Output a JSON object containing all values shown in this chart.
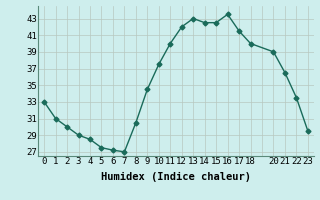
{
  "x": [
    0,
    1,
    2,
    3,
    4,
    5,
    6,
    7,
    8,
    9,
    10,
    11,
    12,
    13,
    14,
    15,
    16,
    17,
    18,
    20,
    21,
    22,
    23
  ],
  "y": [
    33,
    31,
    30,
    29,
    28.5,
    27.5,
    27.2,
    27,
    30.5,
    34.5,
    37.5,
    40,
    42,
    43,
    42.5,
    42.5,
    43.5,
    41.5,
    40,
    39,
    36.5,
    33.5,
    29.5
  ],
  "line_color": "#1a6b5a",
  "marker": "D",
  "marker_size": 2.5,
  "bg_color": "#ceeeed",
  "grid_color": "#b8c8c0",
  "xlabel": "Humidex (Indice chaleur)",
  "ylim": [
    26.5,
    44.5
  ],
  "yticks": [
    27,
    29,
    31,
    33,
    35,
    37,
    39,
    41,
    43
  ],
  "xtick_labels": [
    "0",
    "1",
    "2",
    "3",
    "4",
    "5",
    "6",
    "7",
    "8",
    "9",
    "10",
    "11",
    "12",
    "13",
    "14",
    "15",
    "16",
    "17",
    "18",
    "",
    "20",
    "21",
    "22",
    "23"
  ],
  "xtick_positions": [
    0,
    1,
    2,
    3,
    4,
    5,
    6,
    7,
    8,
    9,
    10,
    11,
    12,
    13,
    14,
    15,
    16,
    17,
    18,
    19,
    20,
    21,
    22,
    23
  ],
  "tick_fontsize": 6.5,
  "xlabel_fontsize": 7.5,
  "linewidth": 1.0,
  "spine_color": "#5a8a7a"
}
